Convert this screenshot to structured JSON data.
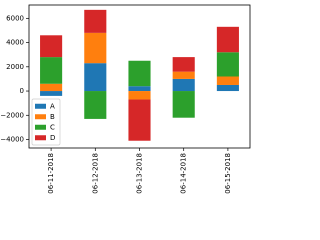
{
  "chart_data": {
    "type": "bar",
    "stacked": true,
    "categories": [
      "06-11-2018",
      "06-12-2018",
      "06-13-2018",
      "06-14-2018",
      "06-15-2018"
    ],
    "series": [
      {
        "name": "A",
        "color": "#1f77b4",
        "values": [
          -400,
          2300,
          400,
          1000,
          500
        ]
      },
      {
        "name": "B",
        "color": "#ff7f0e",
        "values": [
          600,
          2500,
          -700,
          600,
          700
        ]
      },
      {
        "name": "C",
        "color": "#2ca02c",
        "values": [
          2200,
          -2300,
          2100,
          -2200,
          2000
        ]
      },
      {
        "name": "D",
        "color": "#d62728",
        "values": [
          1800,
          1900,
          -3400,
          1200,
          2100
        ]
      }
    ],
    "ylim": [
      -4700,
      7100
    ],
    "yticks": [
      {
        "value": -4000,
        "label": "−4000"
      },
      {
        "value": -2000,
        "label": "−2000"
      },
      0,
      2000,
      4000,
      6000
    ],
    "legend": "lower left"
  }
}
